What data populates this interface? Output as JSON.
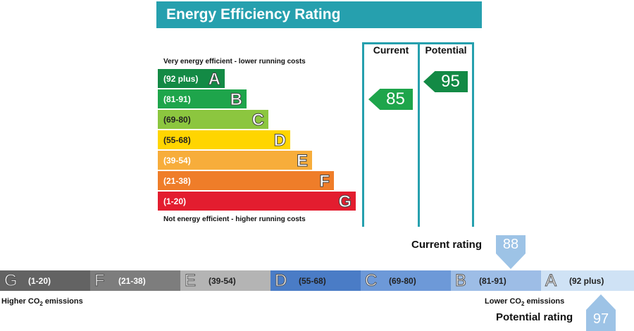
{
  "header": {
    "title": "Energy Efficiency Rating"
  },
  "notes": {
    "top": "Very energy efficient - lower running costs",
    "bottom": "Not energy efficient - higher running costs"
  },
  "columns": {
    "current": "Current",
    "potential": "Potential"
  },
  "chart_data": {
    "type": "bar",
    "title": "Energy Efficiency Rating",
    "bands": [
      {
        "range": "(92 plus)",
        "letter": "A",
        "color": "#138a45"
      },
      {
        "range": "(81-91)",
        "letter": "B",
        "color": "#1ea54b"
      },
      {
        "range": "(69-80)",
        "letter": "C",
        "color": "#8cc63f"
      },
      {
        "range": "(55-68)",
        "letter": "D",
        "color": "#ffd500"
      },
      {
        "range": "(39-54)",
        "letter": "E",
        "color": "#f7ad3b"
      },
      {
        "range": "(21-38)",
        "letter": "F",
        "color": "#ef7d29"
      },
      {
        "range": "(1-20)",
        "letter": "G",
        "color": "#e31d2f"
      }
    ],
    "current_rating": 85,
    "potential_rating": 95
  },
  "scale": {
    "bands": [
      {
        "letter": "G",
        "range": "(1-20)",
        "color": "#636363",
        "text_color": "#ffffff"
      },
      {
        "letter": "F",
        "range": "(21-38)",
        "color": "#7d7d7d",
        "text_color": "#ffffff"
      },
      {
        "letter": "E",
        "range": "(39-54)",
        "color": "#b4b4b4",
        "text_color": "#222222"
      },
      {
        "letter": "D",
        "range": "(55-68)",
        "color": "#4a7cc6",
        "text_color": "#222222"
      },
      {
        "letter": "C",
        "range": "(69-80)",
        "color": "#6d99d8",
        "text_color": "#222222"
      },
      {
        "letter": "B",
        "range": "(81-91)",
        "color": "#9dbde6",
        "text_color": "#222222"
      },
      {
        "letter": "A",
        "range": "(92 plus)",
        "color": "#cfe2f5",
        "text_color": "#222222"
      }
    ],
    "higher_label": "Higher CO",
    "lower_label": "Lower CO",
    "sub": "2",
    "emissions_word": " emissions",
    "current_label": "Current rating",
    "current_value": "88",
    "potential_label": "Potential rating",
    "potential_value": "97",
    "marker_color": "#9dc3e6"
  }
}
